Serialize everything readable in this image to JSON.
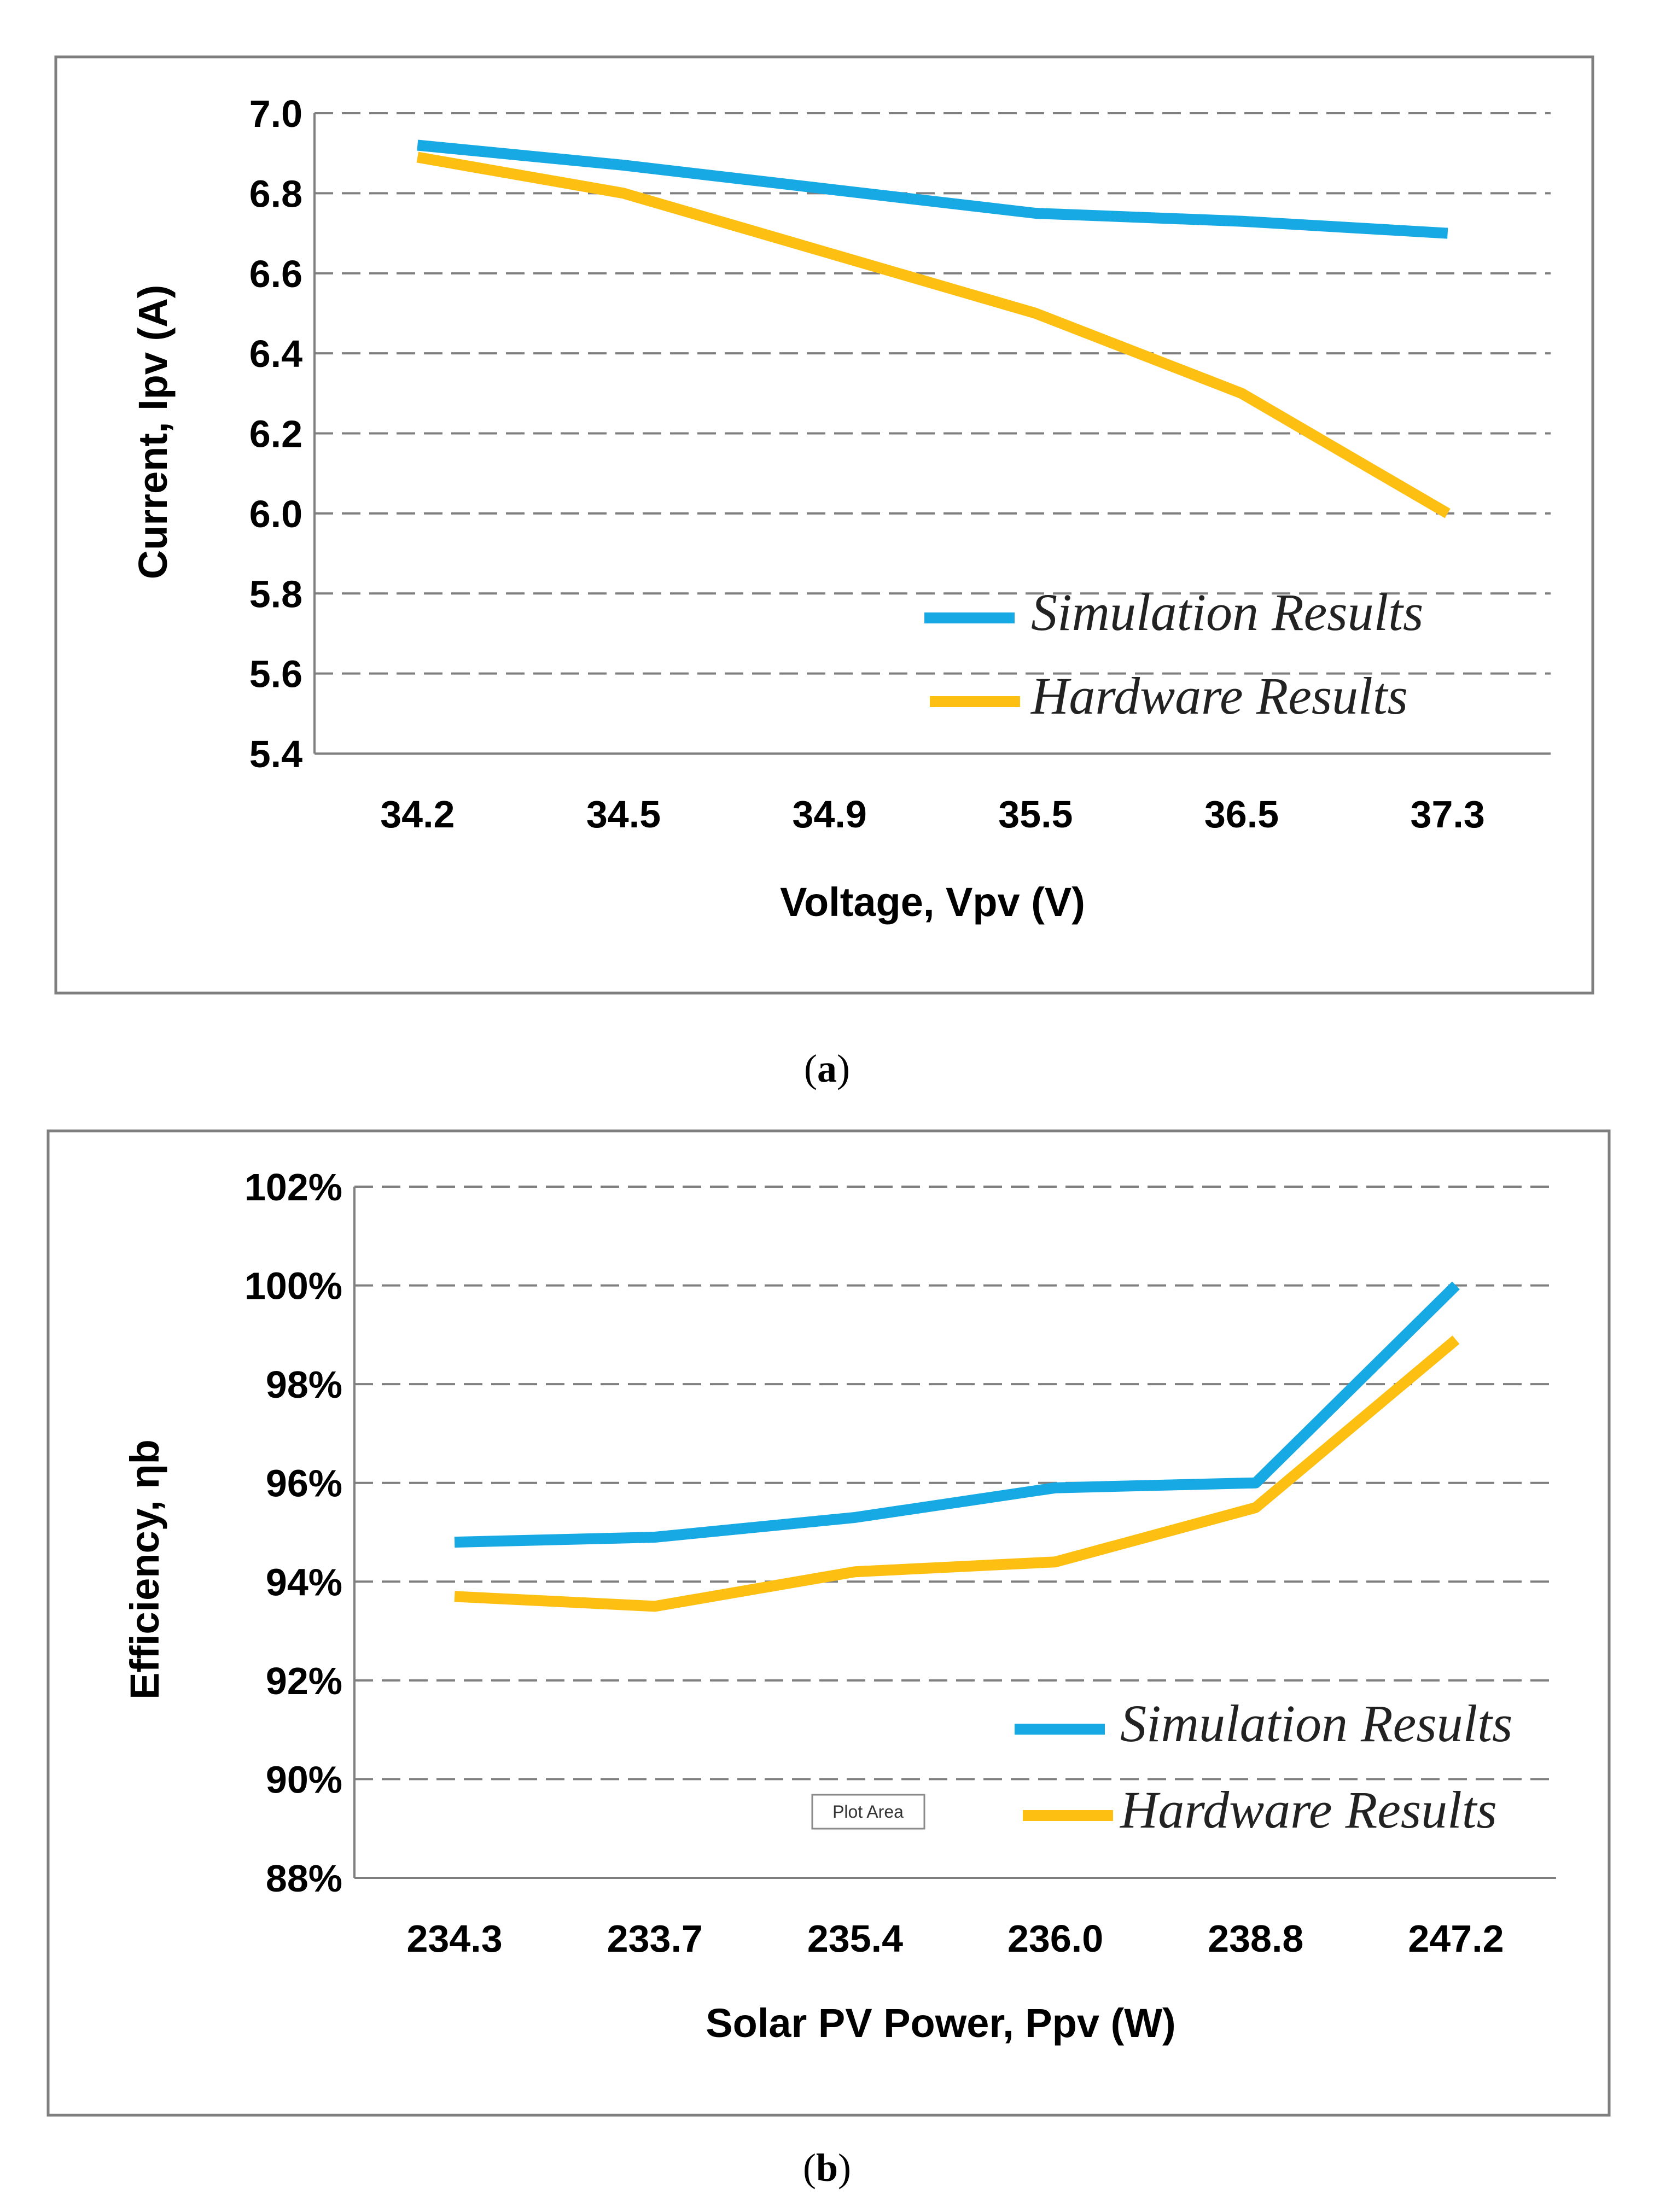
{
  "chart_data": [
    {
      "type": "line",
      "categories": [
        "34.2",
        "34.5",
        "34.9",
        "35.5",
        "36.5",
        "37.3"
      ],
      "series": [
        {
          "name": "Simulation Results",
          "color": "#17a9e3",
          "values": [
            6.92,
            6.87,
            6.81,
            6.75,
            6.73,
            6.7
          ]
        },
        {
          "name": "Hardware Results",
          "color": "#fdbf12",
          "values": [
            6.89,
            6.8,
            6.65,
            6.5,
            6.3,
            6.0
          ]
        }
      ],
      "yticks": [
        "7.0",
        "6.8",
        "6.6",
        "6.4",
        "6.2",
        "6.0",
        "5.8",
        "5.6",
        "5.4"
      ],
      "ylim": [
        5.4,
        7.0
      ],
      "xlabel": "Voltage, Vpv (V)",
      "ylabel": "Current, Ipv (A)",
      "legend_position": "bottom-right",
      "caption_letter": "a",
      "caption_open": "(",
      "caption_close": ")"
    },
    {
      "type": "line",
      "categories": [
        "234.3",
        "233.7",
        "235.4",
        "236.0",
        "238.8",
        "247.2"
      ],
      "series": [
        {
          "name": "Simulation Results",
          "color": "#17a9e3",
          "values": [
            94.8,
            94.9,
            95.3,
            95.9,
            96.0,
            100.0
          ]
        },
        {
          "name": "Hardware Results",
          "color": "#fdbf12",
          "values": [
            93.7,
            93.5,
            94.2,
            94.4,
            95.5,
            98.9
          ]
        }
      ],
      "yticks": [
        "102%",
        "100%",
        "98%",
        "96%",
        "94%",
        "92%",
        "90%",
        "88%"
      ],
      "ylim": [
        88,
        102
      ],
      "xlabel": "Solar PV Power, Ppv (W)",
      "ylabel": "Efficiency, ηb",
      "legend_position": "bottom-right",
      "tooltip": "Plot Area",
      "caption_letter": "b",
      "caption_open": "(",
      "caption_close": ")"
    }
  ]
}
